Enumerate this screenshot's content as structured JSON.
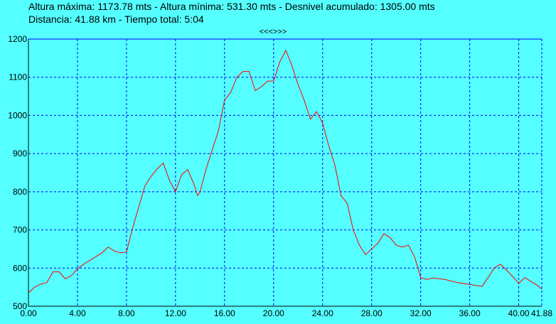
{
  "chart_data": {
    "type": "line",
    "title": "Altura máxima: 1173.78 mts - Altura mínima: 531.30 mts - Desnivel acumulado: 1305.00 mts",
    "subtitle": "Distancia: 41.88 km - Tiempo total: 5:04",
    "annotation": "<<<>>>",
    "x": [
      0,
      0.5,
      1,
      1.5,
      2,
      2.5,
      3,
      3.5,
      4,
      4.5,
      5,
      5.5,
      6,
      6.5,
      7,
      7.5,
      8,
      8.5,
      9,
      9.5,
      10,
      10.5,
      11,
      11.5,
      12,
      12.5,
      13,
      13.5,
      13.8,
      14,
      14.5,
      15,
      15.5,
      16,
      16.5,
      17,
      17.5,
      18,
      18.5,
      19,
      19.5,
      20,
      20.5,
      21,
      21.5,
      22,
      22.5,
      23,
      23.5,
      24,
      24.5,
      25,
      25.5,
      26,
      26.5,
      27,
      27.5,
      28,
      28.5,
      29,
      29.5,
      30,
      30.5,
      31,
      31.5,
      32,
      32.5,
      33,
      34,
      35,
      36,
      37,
      37.5,
      38,
      38.5,
      39,
      39.5,
      40,
      40.5,
      41,
      41.5,
      41.88
    ],
    "series": [
      {
        "name": "Altura",
        "color": "#ff0000",
        "values": [
          535,
          550,
          558,
          562,
          590,
          590,
          572,
          580,
          598,
          610,
          620,
          630,
          640,
          655,
          645,
          640,
          642,
          705,
          760,
          815,
          840,
          860,
          875,
          830,
          800,
          845,
          858,
          820,
          790,
          800,
          860,
          910,
          960,
          1040,
          1060,
          1100,
          1115,
          1115,
          1065,
          1075,
          1090,
          1090,
          1140,
          1170,
          1130,
          1080,
          1040,
          990,
          1010,
          980,
          920,
          870,
          790,
          770,
          700,
          660,
          635,
          650,
          665,
          690,
          680,
          660,
          655,
          660,
          630,
          575,
          570,
          574,
          570,
          562,
          557,
          552,
          575,
          600,
          610,
          595,
          578,
          560,
          575,
          565,
          555,
          545
        ]
      }
    ],
    "xlim": [
      0,
      41.88
    ],
    "xticks": [
      {
        "value": 0,
        "label": "0.00"
      },
      {
        "value": 4,
        "label": "4.00"
      },
      {
        "value": 8,
        "label": "8.00"
      },
      {
        "value": 12,
        "label": "12.00"
      },
      {
        "value": 16,
        "label": "16.00"
      },
      {
        "value": 20,
        "label": "20.00"
      },
      {
        "value": 24,
        "label": "24.00"
      },
      {
        "value": 28,
        "label": "28.00"
      },
      {
        "value": 32,
        "label": "32.00"
      },
      {
        "value": 36,
        "label": "36.00"
      },
      {
        "value": 40,
        "label": "40.00"
      },
      {
        "value": 41.88,
        "label": "41.88"
      }
    ],
    "ylim": [
      500,
      1200
    ],
    "yticks": [
      500,
      600,
      700,
      800,
      900,
      1000,
      1100,
      1200
    ],
    "grid": true
  }
}
